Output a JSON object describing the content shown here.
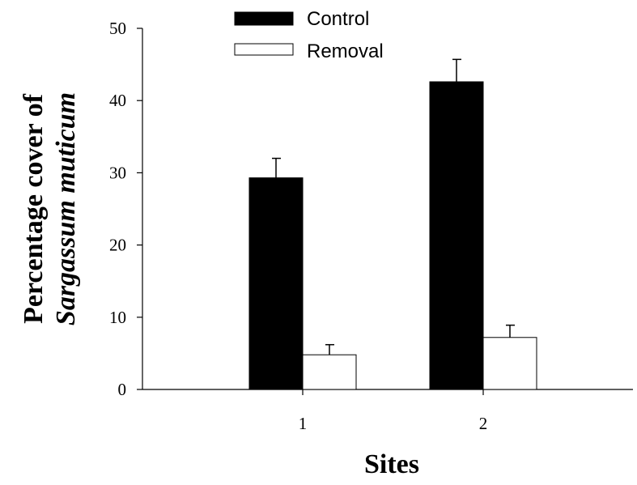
{
  "chart_data": {
    "type": "bar",
    "xlabel": "Sites",
    "ylabel_line1": "Percentage cover of",
    "ylabel_line2": "Sargassum muticum",
    "categories": [
      "1",
      "2"
    ],
    "ylim": [
      0,
      50
    ],
    "yticks": [
      0,
      10,
      20,
      30,
      40,
      50
    ],
    "grid": false,
    "legend_position": "top-center",
    "series": [
      {
        "name": "Control",
        "fill": "#000000",
        "values": [
          29.3,
          42.6
        ],
        "errors": [
          2.7,
          3.1
        ]
      },
      {
        "name": "Removal",
        "fill": "#ffffff",
        "values": [
          4.8,
          7.2
        ],
        "errors": [
          1.4,
          1.7
        ]
      }
    ]
  }
}
